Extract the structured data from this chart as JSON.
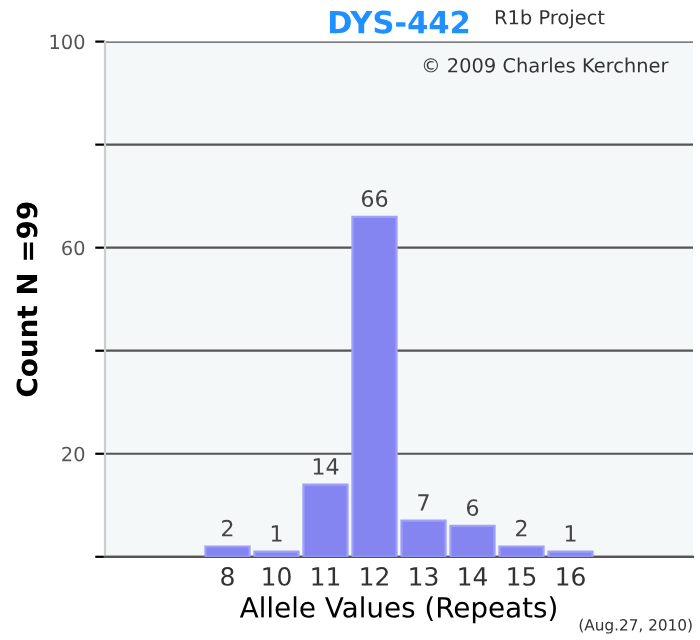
{
  "chart_data": {
    "type": "bar",
    "title": "DYS-442",
    "xlabel": "Allele Values (Repeats)",
    "ylabel": "Count N =99",
    "categories": [
      null,
      null,
      "8",
      "10",
      "11",
      "12",
      "13",
      "14",
      "15",
      "16",
      null,
      null
    ],
    "values": [
      null,
      null,
      2,
      1,
      14,
      66,
      7,
      6,
      2,
      1,
      null,
      null
    ],
    "color": "#8585f2",
    "data_labels": true,
    "grid": "y",
    "ylim": [
      0,
      100
    ],
    "yticks": [
      {
        "value": 0,
        "label": null
      },
      20,
      {
        "value": 40,
        "label": null
      },
      60,
      {
        "value": 80,
        "label": null
      },
      100
    ],
    "annotations": [
      "R1b Project",
      "© 2009 Charles Kerchner",
      "(Aug.27, 2010)"
    ]
  }
}
